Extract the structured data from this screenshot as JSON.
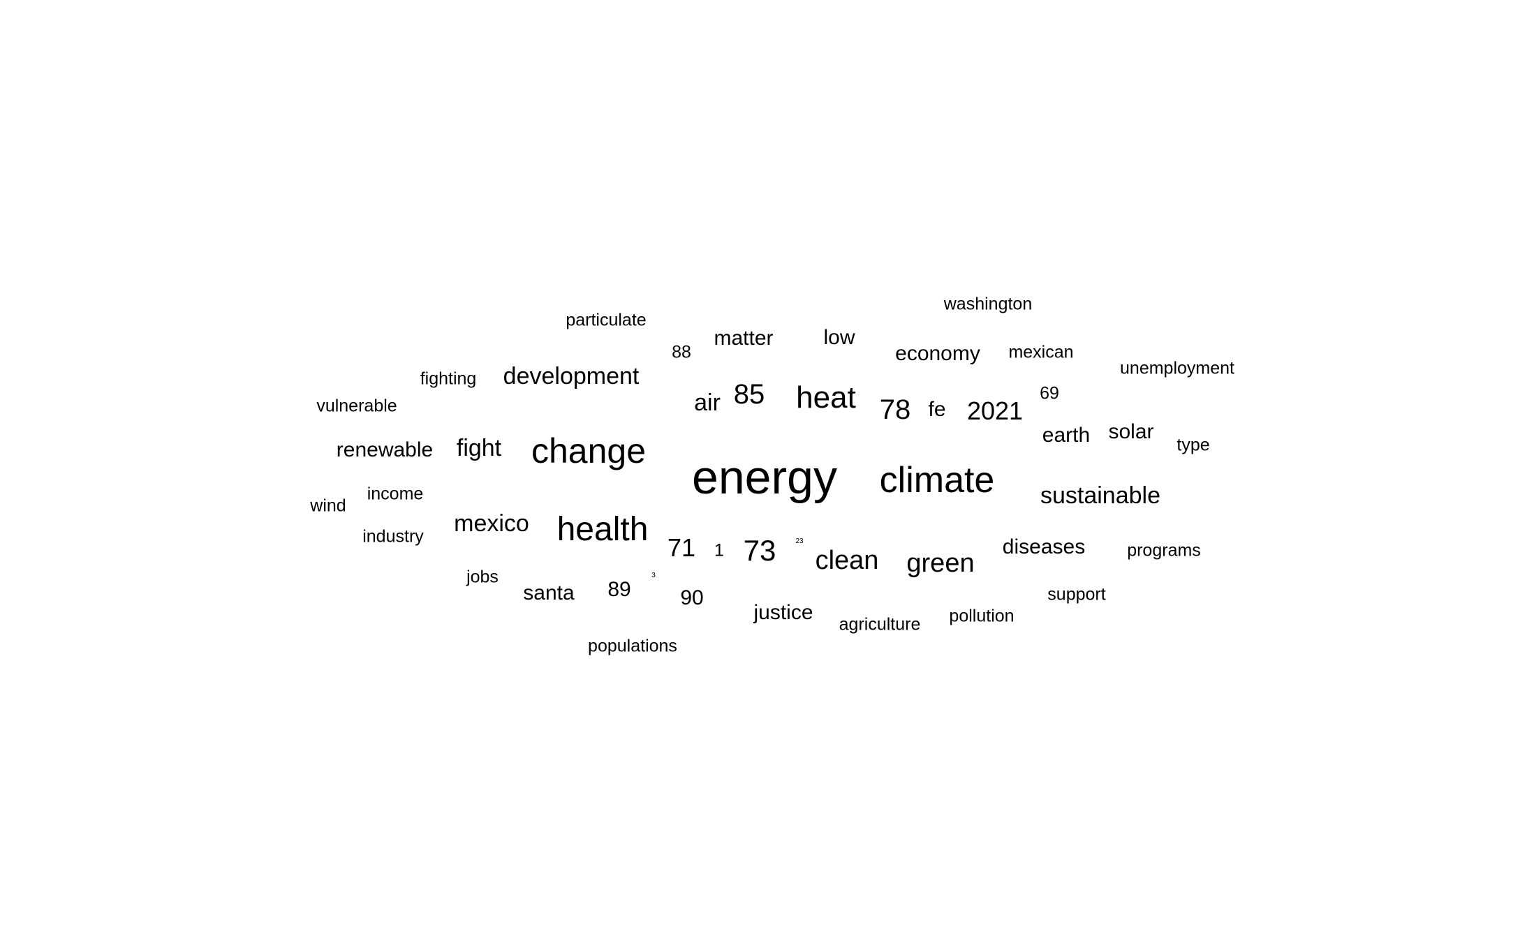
{
  "words": [
    {
      "text": "energy",
      "weight": 1.0
    },
    {
      "text": "change",
      "weight": 0.72
    },
    {
      "text": "climate",
      "weight": 0.72
    },
    {
      "text": "health",
      "weight": 0.7
    },
    {
      "text": "heat",
      "weight": 0.6
    },
    {
      "text": "73",
      "weight": 0.6
    },
    {
      "text": "85",
      "weight": 0.56
    },
    {
      "text": "78",
      "weight": 0.55
    },
    {
      "text": "clean",
      "weight": 0.52
    },
    {
      "text": "green",
      "weight": 0.52
    },
    {
      "text": "2021",
      "weight": 0.5
    },
    {
      "text": "71",
      "weight": 0.5
    },
    {
      "text": "sustainable",
      "weight": 0.48
    },
    {
      "text": "mexico",
      "weight": 0.48
    },
    {
      "text": "development",
      "weight": 0.46
    },
    {
      "text": "fight",
      "weight": 0.46
    },
    {
      "text": "air",
      "weight": 0.46
    },
    {
      "text": "renewable",
      "weight": 0.42
    },
    {
      "text": "matter",
      "weight": 0.42
    },
    {
      "text": "low",
      "weight": 0.42
    },
    {
      "text": "economy",
      "weight": 0.42
    },
    {
      "text": "fe",
      "weight": 0.42
    },
    {
      "text": "earth",
      "weight": 0.42
    },
    {
      "text": "solar",
      "weight": 0.42
    },
    {
      "text": "diseases",
      "weight": 0.42
    },
    {
      "text": "santa",
      "weight": 0.42
    },
    {
      "text": "89",
      "weight": 0.42
    },
    {
      "text": "90",
      "weight": 0.42
    },
    {
      "text": "justice",
      "weight": 0.42
    },
    {
      "text": "washington",
      "weight": 0.36
    },
    {
      "text": "particulate",
      "weight": 0.36
    },
    {
      "text": "88",
      "weight": 0.36
    },
    {
      "text": "mexican",
      "weight": 0.36
    },
    {
      "text": "unemployment",
      "weight": 0.36
    },
    {
      "text": "fighting",
      "weight": 0.36
    },
    {
      "text": "vulnerable",
      "weight": 0.36
    },
    {
      "text": "69",
      "weight": 0.36
    },
    {
      "text": "type",
      "weight": 0.36
    },
    {
      "text": "wind",
      "weight": 0.36
    },
    {
      "text": "income",
      "weight": 0.36
    },
    {
      "text": "industry",
      "weight": 0.36
    },
    {
      "text": "1",
      "weight": 0.36
    },
    {
      "text": "programs",
      "weight": 0.36
    },
    {
      "text": "jobs",
      "weight": 0.36
    },
    {
      "text": "support",
      "weight": 0.36
    },
    {
      "text": "agriculture",
      "weight": 0.36
    },
    {
      "text": "pollution",
      "weight": 0.36
    },
    {
      "text": "populations",
      "weight": 0.36
    },
    {
      "text": "23",
      "weight": 0.1
    },
    {
      "text": "3",
      "weight": 0.1
    }
  ]
}
